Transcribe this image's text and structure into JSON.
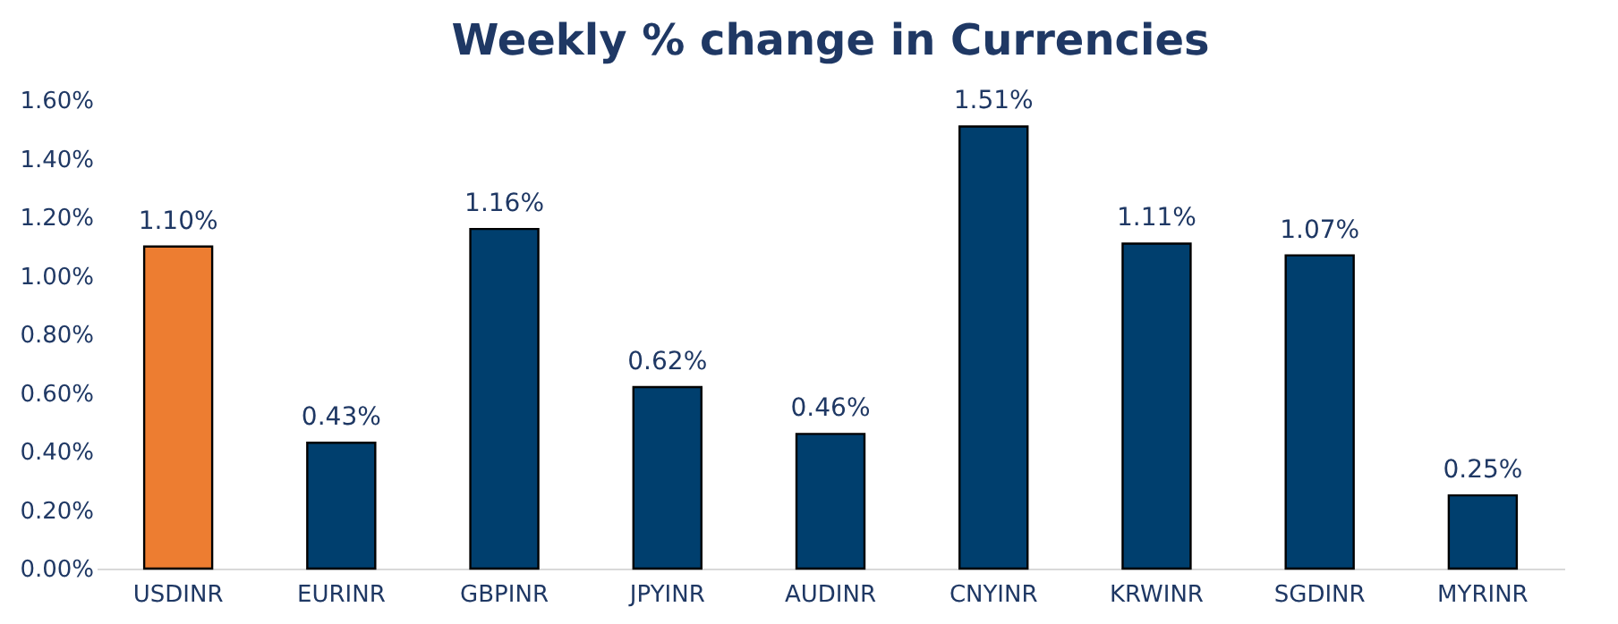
{
  "chart_data": {
    "type": "bar",
    "title": "Weekly % change in Currencies",
    "categories": [
      "USDINR",
      "EURINR",
      "GBPINR",
      "JPYINR",
      "AUDINR",
      "CNYINR",
      "KRWINR",
      "SGDINR",
      "MYRINR"
    ],
    "values": [
      1.1,
      0.43,
      1.16,
      0.62,
      0.46,
      1.51,
      1.11,
      1.07,
      0.25
    ],
    "value_labels": [
      "1.10%",
      "0.43%",
      "1.16%",
      "0.62%",
      "0.46%",
      "1.51%",
      "1.11%",
      "1.07%",
      "0.25%"
    ],
    "colors": [
      "#ed7d31",
      "#003f6e",
      "#003f6e",
      "#003f6e",
      "#003f6e",
      "#003f6e",
      "#003f6e",
      "#003f6e",
      "#003f6e"
    ],
    "ylim": [
      0,
      1.6
    ],
    "yticks": [
      {
        "value": 0,
        "label": "0.00%"
      },
      {
        "value": 0.2,
        "label": "0.20%"
      },
      {
        "value": 0.4,
        "label": "0.40%"
      },
      {
        "value": 0.6,
        "label": "0.60%"
      },
      {
        "value": 0.8,
        "label": "0.80%"
      },
      {
        "value": 1.0,
        "label": "1.00%"
      },
      {
        "value": 1.2,
        "label": "1.20%"
      },
      {
        "value": 1.4,
        "label": "1.40%"
      },
      {
        "value": 1.6,
        "label": "1.60%"
      }
    ],
    "grid": false
  }
}
